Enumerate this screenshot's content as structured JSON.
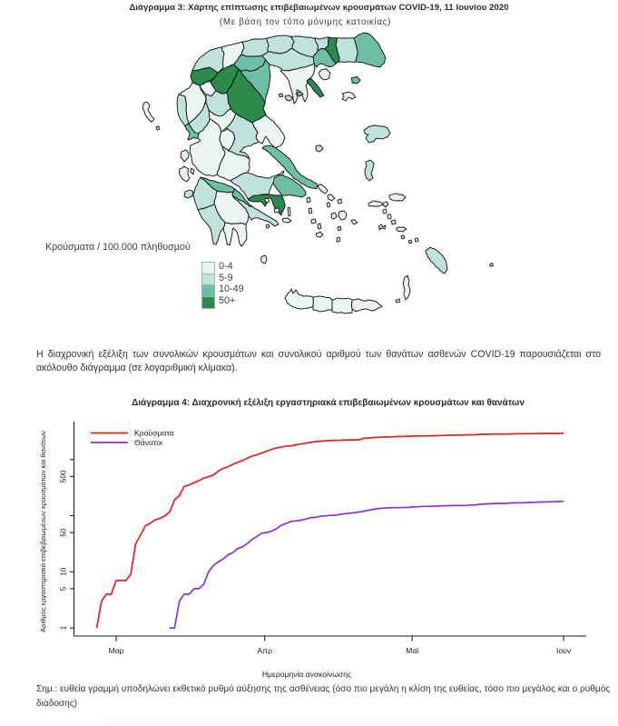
{
  "page": {
    "background": "#ffffff"
  },
  "map_figure": {
    "title": "Διάγραμμα 3: Χάρτης επίπτωσης επιβεβαιωμένων κρουσμάτων COVID-19, 11 Ιουνίου 2020",
    "subtitle": "(Με βάση τον τόπο μόνιμης κατοικίας)",
    "legend": {
      "title": "Κρούσματα / 100.000 πληθυσμού",
      "classes": [
        {
          "label": "0-4",
          "color": "#eaf4f1"
        },
        {
          "label": "5-9",
          "color": "#bfe3dc"
        },
        {
          "label": "10-49",
          "color": "#6cbfa3"
        },
        {
          "label": "50+",
          "color": "#2c8b4c"
        }
      ]
    },
    "regions": {
      "thesprotia": "c1",
      "ioannina": "c0",
      "arta": "c1",
      "preveza": "c2",
      "kastoria": "c3",
      "florina": "c1",
      "kozani": "c3",
      "grevena": "c0",
      "almopia": "c0",
      "pella": "c1",
      "imathia": "c2",
      "pieria": "c2",
      "kilkis": "c1",
      "thessaloniki": "c1",
      "serres": "c1",
      "chalkidiki": "c0",
      "athos": "c3",
      "drama": "c1",
      "kavala": "c2",
      "xanthi": "c3",
      "rhodope": "c1",
      "evros": "c2",
      "larissa": "c3",
      "trikala": "c1",
      "karditsa": "c0",
      "magnesia": "c0",
      "aetolia": "c0",
      "evrytania": "c0",
      "phthiotis": "c1",
      "phocis": "c0",
      "boeotia": "c1",
      "attica": "c3",
      "east_attica": "c2",
      "achaia": "c2",
      "corinthia": "c2",
      "argolis": "c1",
      "arcadia": "c0",
      "elis": "c1",
      "messenia": "c1",
      "laconia": "c0",
      "evia": "c2",
      "skyros": "c1",
      "skiathos": "c1",
      "skopelos": "c1",
      "alonnisos": "c2",
      "thasos": "c0",
      "samothraki": "c2",
      "lemnos": "c0",
      "lesbos": "c1",
      "chios": "c1",
      "samos": "c0",
      "ikaria": "c0",
      "corfu": "c0",
      "paxoi": "c0",
      "lefkada": "c0",
      "kefalonia": "c0",
      "ithaki": "c0",
      "zakynthos": "c1",
      "kythira": "c0",
      "chania": "c0",
      "rethymno": "c0",
      "heraklion": "c0",
      "lasithi": "c0",
      "andros": "c0",
      "tinos": "c0",
      "mykonos": "c0",
      "syros": "c0",
      "kea": "c0",
      "kythnos": "c0",
      "serifos": "c0",
      "sifnos": "c0",
      "milos": "c0",
      "paros": "c0",
      "naxos": "c0",
      "ios": "c0",
      "santorini": "c0",
      "amorgos": "c0",
      "makronisos": "c0",
      "fourni": "c0",
      "patmos": "c0",
      "leros": "c0",
      "kalymnos": "c0",
      "kos": "c0",
      "nisyros": "c0",
      "tilos": "c0",
      "symi": "c0",
      "astypalaia": "c0",
      "rhodes": "c1",
      "karpathos": "c0",
      "kasos": "c0",
      "kastellorizo": "c0",
      "salamina": "c0",
      "aegina": "c0",
      "hydra": "c0",
      "spetses": "c0"
    }
  },
  "paragraph": "Η διαχρονική εξέλιξη των συνολικών κρουσμάτων και συνολικού αριθμού των θανάτων ασθενών COVID-19 παρουσιάζεται στο ακόλουθο διάγραμμα (σε λογαριθμική κλίμακα).",
  "chart_data": {
    "type": "line",
    "title": "Διάγραμμα 4: Διαχρονική εξέλιξη εργαστηριακά επιβεβαιωμένων κρουσμάτων και θανάτων",
    "xlabel": "Ημερομηνία ανακοίνωσης",
    "ylabel": "Αριθμός εργαστηριακά επιβεβαιωμένων κρουσμάτων και θανάτων",
    "y_scale": "log",
    "y_ticks_labeled": [
      1,
      5,
      10,
      50,
      500
    ],
    "y_ticks_unlabeled": [
      100,
      1000
    ],
    "x_ticks": [
      {
        "day": 0,
        "label": "Μαρ"
      },
      {
        "day": 31,
        "label": "Απρ"
      },
      {
        "day": 61,
        "label": "Μαϊ"
      },
      {
        "day": 92,
        "label": "Ιουν"
      }
    ],
    "legend": [
      {
        "name": "Κρούσματα",
        "color": "#e2201c"
      },
      {
        "name": "Θάνατοι",
        "color": "#8b2fdb"
      }
    ],
    "series": [
      {
        "name": "Κρούσματα",
        "color": "#e2201c",
        "days": [
          -4,
          -3,
          -2,
          -1,
          0,
          1,
          2,
          3,
          4,
          5,
          6,
          7,
          8,
          9,
          10,
          11,
          12,
          13,
          14,
          15,
          16,
          17,
          18,
          19,
          20,
          21,
          22,
          23,
          24,
          25,
          26,
          27,
          28,
          29,
          30,
          31,
          32,
          33,
          34,
          35,
          36,
          37,
          38,
          39,
          40,
          41,
          42,
          43,
          44,
          45,
          46,
          47,
          48,
          49,
          50,
          51,
          52,
          53,
          54,
          55,
          56,
          57,
          58,
          59,
          60,
          61,
          62,
          63,
          64,
          65,
          66,
          67,
          68,
          69,
          70,
          71,
          72,
          73,
          74,
          75,
          76,
          77,
          78,
          79,
          80,
          81,
          82,
          83,
          84,
          85,
          86,
          87,
          88,
          89,
          90,
          91,
          92
        ],
        "values": [
          1,
          3,
          4,
          4,
          7,
          7,
          7,
          9,
          31,
          45,
          66,
          73,
          84,
          89,
          99,
          117,
          190,
          228,
          331,
          352,
          387,
          418,
          464,
          495,
          530,
          624,
          695,
          743,
          821,
          892,
          966,
          1061,
          1156,
          1212,
          1314,
          1415,
          1514,
          1613,
          1673,
          1735,
          1755,
          1832,
          1884,
          1955,
          2011,
          2081,
          2114,
          2145,
          2170,
          2192,
          2207,
          2224,
          2235,
          2235,
          2245,
          2401,
          2408,
          2463,
          2490,
          2506,
          2517,
          2534,
          2566,
          2576,
          2591,
          2612,
          2620,
          2626,
          2632,
          2642,
          2663,
          2678,
          2691,
          2710,
          2716,
          2726,
          2744,
          2760,
          2770,
          2810,
          2819,
          2834,
          2836,
          2840,
          2850,
          2853,
          2873,
          2876,
          2878,
          2882,
          2892,
          2906,
          2909,
          2915,
          2917,
          2918,
          2937
        ]
      },
      {
        "name": "Θάνατοι",
        "color": "#8b2fdb",
        "days": [
          11,
          12,
          13,
          14,
          15,
          16,
          17,
          18,
          19,
          20,
          21,
          22,
          23,
          24,
          25,
          26,
          27,
          28,
          29,
          30,
          31,
          32,
          33,
          34,
          35,
          36,
          37,
          38,
          39,
          40,
          41,
          42,
          43,
          44,
          45,
          46,
          47,
          48,
          49,
          50,
          51,
          52,
          53,
          54,
          55,
          56,
          57,
          58,
          59,
          60,
          61,
          62,
          63,
          64,
          65,
          66,
          67,
          68,
          69,
          70,
          71,
          72,
          73,
          74,
          75,
          76,
          77,
          78,
          79,
          80,
          81,
          82,
          83,
          84,
          85,
          86,
          87,
          88,
          89,
          90,
          91,
          92
        ],
        "values": [
          1,
          1,
          3,
          4,
          4,
          5,
          5,
          6,
          10,
          13,
          15,
          17,
          20,
          22,
          26,
          28,
          32,
          38,
          43,
          49,
          50,
          53,
          59,
          68,
          73,
          79,
          81,
          83,
          87,
          92,
          93,
          98,
          99,
          101,
          102,
          105,
          108,
          110,
          113,
          116,
          121,
          125,
          130,
          134,
          136,
          138,
          139,
          139,
          140,
          140,
          143,
          144,
          146,
          146,
          147,
          148,
          150,
          150,
          151,
          151,
          152,
          152,
          155,
          156,
          160,
          162,
          163,
          165,
          165,
          166,
          168,
          169,
          170,
          170,
          172,
          173,
          175,
          175,
          177,
          177,
          178,
          180
        ]
      }
    ]
  },
  "footnote": "Σημ.: ευθεία γραμμή υποδηλώνει εκθετικό ρυθμό αύξησης της ασθένειας (όσο πιο μεγάλη η κλίση της ευθείας, τόσο πιο μεγάλος και ο ρυθμός διάδοσης)"
}
